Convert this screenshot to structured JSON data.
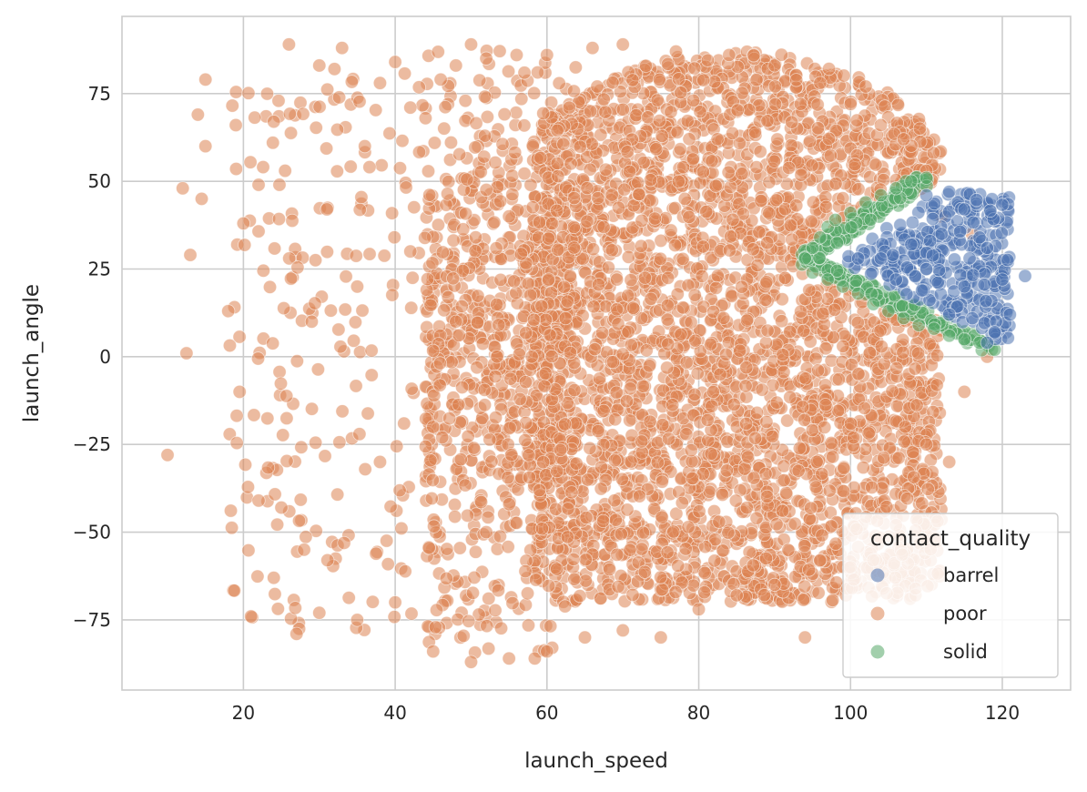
{
  "chart_data": {
    "type": "scatter",
    "title": "",
    "xlabel": "launch_speed",
    "ylabel": "launch_angle",
    "xlim": [
      4,
      129
    ],
    "ylim": [
      -95,
      97
    ],
    "xticks": [
      20,
      40,
      60,
      80,
      100,
      120
    ],
    "yticks": [
      -75,
      -50,
      -25,
      0,
      25,
      50,
      75
    ],
    "grid": true,
    "legend": {
      "title": "contact_quality",
      "placement": "bottom-right"
    },
    "series": [
      {
        "name": "barrel",
        "color": "#4c72b0",
        "region": {
          "x_range": [
            98,
            123
          ],
          "y_range": [
            3,
            47
          ]
        },
        "sample_points": [
          [
            110,
            46
          ],
          [
            113,
            47
          ],
          [
            115,
            42
          ],
          [
            117,
            34
          ],
          [
            118,
            31
          ],
          [
            120,
            22
          ],
          [
            123,
            23
          ],
          [
            121,
            12
          ],
          [
            119,
            7
          ],
          [
            118,
            4
          ],
          [
            112,
            35
          ],
          [
            108,
            32
          ],
          [
            104,
            28
          ],
          [
            110,
            25
          ],
          [
            115,
            20
          ],
          [
            113,
            12
          ],
          [
            106,
            22
          ],
          [
            101,
            28
          ]
        ]
      },
      {
        "name": "poor",
        "color": "#dd8452",
        "region": {
          "x_range": [
            10,
            118
          ],
          "y_range": [
            -87,
            89
          ]
        },
        "sample_points": [
          [
            10,
            -28
          ],
          [
            12,
            48
          ],
          [
            13,
            29
          ],
          [
            12.5,
            1
          ],
          [
            14,
            69
          ],
          [
            15,
            79
          ],
          [
            15,
            60
          ],
          [
            14.5,
            45
          ],
          [
            19,
            66
          ],
          [
            20,
            38
          ],
          [
            18,
            13
          ],
          [
            19.5,
            -10
          ],
          [
            22,
            49
          ],
          [
            21,
            -74
          ],
          [
            24,
            67
          ],
          [
            26,
            89
          ],
          [
            25,
            -43
          ],
          [
            27,
            -79
          ],
          [
            30,
            83
          ],
          [
            32,
            82
          ],
          [
            33,
            88
          ],
          [
            36,
            60
          ],
          [
            38,
            78
          ],
          [
            40,
            84
          ],
          [
            42,
            71
          ],
          [
            44,
            68
          ],
          [
            46,
            79
          ],
          [
            48,
            83
          ],
          [
            50,
            89
          ],
          [
            52,
            85
          ],
          [
            56,
            86
          ],
          [
            60,
            86
          ],
          [
            66,
            88
          ],
          [
            70,
            89
          ],
          [
            77,
            87
          ],
          [
            84,
            86
          ],
          [
            90,
            83
          ],
          [
            96,
            78
          ],
          [
            100,
            72
          ],
          [
            102,
            77
          ],
          [
            104,
            66
          ],
          [
            107,
            62
          ],
          [
            110,
            53
          ],
          [
            112,
            40
          ],
          [
            116,
            35
          ],
          [
            118,
            0
          ],
          [
            115,
            -10
          ],
          [
            113,
            -30
          ],
          [
            110,
            -25
          ],
          [
            106,
            -48
          ],
          [
            103,
            -58
          ],
          [
            100,
            -60
          ],
          [
            96,
            -58
          ],
          [
            94,
            -80
          ],
          [
            90,
            -65
          ],
          [
            85,
            -68
          ],
          [
            80,
            -72
          ],
          [
            75,
            -80
          ],
          [
            70,
            -78
          ],
          [
            65,
            -80
          ],
          [
            60,
            -84
          ],
          [
            55,
            -86
          ],
          [
            50,
            -87
          ],
          [
            45,
            -84
          ],
          [
            40,
            -70
          ],
          [
            35,
            -75
          ],
          [
            30,
            -73
          ],
          [
            28,
            -55
          ],
          [
            24,
            -63
          ],
          [
            22,
            -41
          ],
          [
            29,
            10
          ],
          [
            31,
            42
          ],
          [
            35,
            20
          ],
          [
            38,
            -30
          ],
          [
            42,
            30
          ],
          [
            45,
            -20
          ],
          [
            48,
            10
          ],
          [
            52,
            -50
          ],
          [
            55,
            40
          ],
          [
            58,
            0
          ]
        ],
        "core": {
          "x_range": [
            58,
            112
          ],
          "y_range": [
            -70,
            88
          ]
        }
      },
      {
        "name": "solid",
        "color": "#55a868",
        "region": {
          "x_range": [
            94,
            120
          ],
          "y_range": [
            2,
            51
          ]
        },
        "sample_points": [
          [
            94,
            28
          ],
          [
            95,
            31
          ],
          [
            96,
            34
          ],
          [
            97,
            37
          ],
          [
            98,
            39
          ],
          [
            100,
            41
          ],
          [
            102,
            44
          ],
          [
            104,
            46
          ],
          [
            106,
            48
          ],
          [
            108,
            50
          ],
          [
            110,
            51
          ],
          [
            95,
            24
          ],
          [
            97,
            22
          ],
          [
            99,
            20
          ],
          [
            101,
            18
          ],
          [
            103,
            15
          ],
          [
            105,
            13
          ],
          [
            107,
            11
          ],
          [
            109,
            9
          ],
          [
            111,
            8
          ],
          [
            113,
            6
          ],
          [
            115,
            5
          ],
          [
            117,
            4
          ],
          [
            119,
            2
          ]
        ]
      }
    ]
  }
}
